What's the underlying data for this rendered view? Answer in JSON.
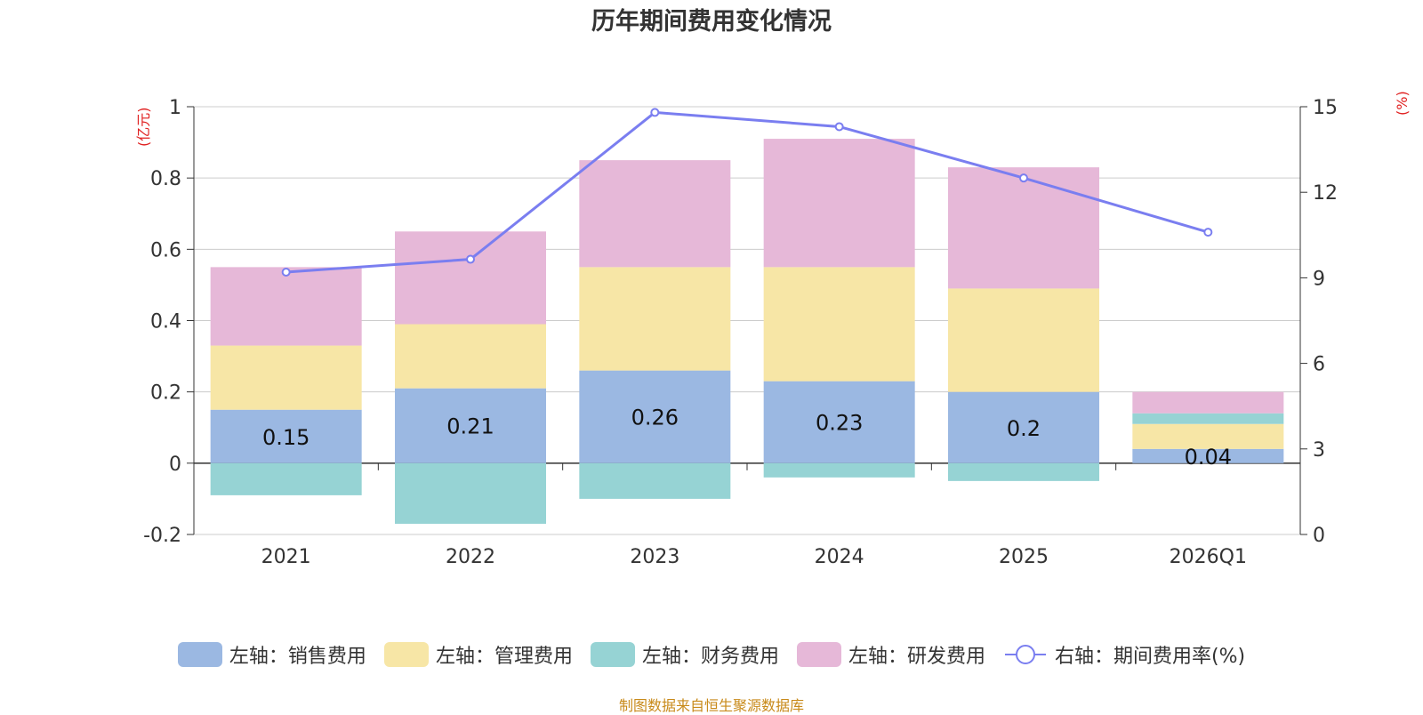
{
  "title": "历年期间费用变化情况",
  "source": "制图数据来自恒生聚源数据库",
  "units": {
    "left": "(亿元)",
    "right": "(%)"
  },
  "colors": {
    "sales": "#9bb8e2",
    "admin": "#f7e6a6",
    "finance": "#96d3d4",
    "rnd": "#e6b8d8",
    "rate": "#7a7ef0",
    "unit": "#e02020",
    "source": "#c88a1a",
    "grid": "#cccccc",
    "axis": "#333333"
  },
  "legend": [
    {
      "label": "左轴：销售费用",
      "key": "sales"
    },
    {
      "label": "左轴：管理费用",
      "key": "admin"
    },
    {
      "label": "左轴：财务费用",
      "key": "finance"
    },
    {
      "label": "左轴：研发费用",
      "key": "rnd"
    },
    {
      "label": "右轴：期间费用率(%)",
      "key": "rate"
    }
  ],
  "chart_data": {
    "type": "bar",
    "stacked": true,
    "categories": [
      "2021",
      "2022",
      "2023",
      "2024",
      "2025",
      "2026Q1"
    ],
    "series": [
      {
        "name": "左轴：销售费用",
        "key": "sales",
        "axis": "left",
        "values": [
          0.15,
          0.21,
          0.26,
          0.23,
          0.2,
          0.04
        ]
      },
      {
        "name": "左轴：管理费用",
        "key": "admin",
        "axis": "left",
        "values": [
          0.18,
          0.18,
          0.29,
          0.32,
          0.29,
          0.07
        ]
      },
      {
        "name": "左轴：财务费用",
        "key": "finance",
        "axis": "left",
        "values": [
          -0.09,
          -0.17,
          -0.1,
          -0.04,
          -0.05,
          0.03
        ]
      },
      {
        "name": "左轴：研发费用",
        "key": "rnd",
        "axis": "left",
        "values": [
          0.22,
          0.26,
          0.3,
          0.36,
          0.34,
          0.06
        ]
      },
      {
        "name": "右轴：期间费用率(%)",
        "key": "rate",
        "axis": "right",
        "type": "line",
        "values": [
          9.2,
          9.65,
          14.8,
          14.3,
          12.5,
          10.6
        ]
      }
    ],
    "data_labels": [
      "0.15",
      "0.21",
      "0.26",
      "0.23",
      "0.2",
      "0.04"
    ],
    "left_axis": {
      "min": -0.2,
      "max": 1,
      "ticks": [
        "-0.2",
        "0",
        "0.2",
        "0.4",
        "0.6",
        "0.8",
        "1"
      ],
      "label": "(亿元)"
    },
    "right_axis": {
      "min": 0,
      "max": 15,
      "ticks": [
        "0",
        "3",
        "6",
        "9",
        "12",
        "15"
      ],
      "label": "(%)"
    },
    "grid": true,
    "legend_position": "bottom"
  }
}
